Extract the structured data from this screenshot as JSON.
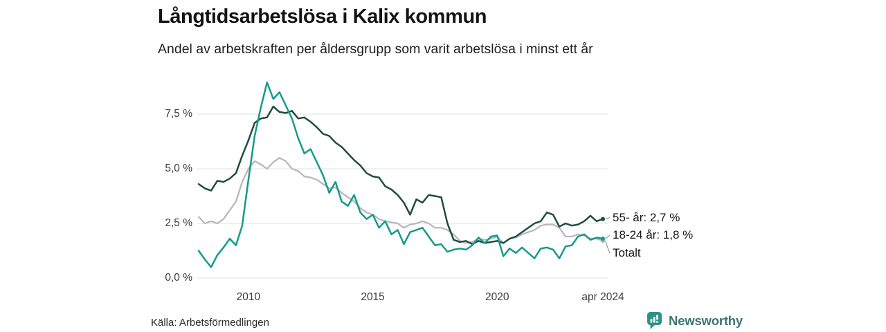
{
  "header": {
    "title": "Långtidsarbetslösa i Kalix kommun",
    "subtitle": "Andel av arbetskraften per åldersgrupp som varit arbetslösa i minst ett år"
  },
  "footer": {
    "source": "Källa: Arbetsförmedlingen",
    "brand": "Newsworthy"
  },
  "colors": {
    "series_55": "#1e4d40",
    "series_18_24": "#149a8b",
    "series_total": "#b8b6bc",
    "gridline": "#e6e6e6",
    "connector": "#999999",
    "brand_icon": "#2f9287",
    "brand_text": "#3b7572"
  },
  "chart_data": {
    "type": "line",
    "title": "Långtidsarbetslösa i Kalix kommun",
    "xlabel": "",
    "ylabel": "Andel av arbetskraften (%)",
    "x_unit": "decimal_year",
    "x_start": 2008.0,
    "x_step": 0.25,
    "xlim": [
      2008.0,
      2024.25
    ],
    "ylim": [
      0,
      9.2
    ],
    "grid": "horizontal",
    "legend_position": "right-annotations",
    "y_ticks": [
      {
        "value": 0.0,
        "label": "0,0 %"
      },
      {
        "value": 2.5,
        "label": "2,5 %"
      },
      {
        "value": 5.0,
        "label": "5,0 %"
      },
      {
        "value": 7.5,
        "label": "7,5 %"
      }
    ],
    "x_ticks": [
      {
        "value": 2010,
        "label": "2010"
      },
      {
        "value": 2015,
        "label": "2015"
      },
      {
        "value": 2020,
        "label": "2020"
      },
      {
        "value": 2024.25,
        "label": "apr 2024"
      }
    ],
    "series": [
      {
        "name": "Totalt",
        "color": "#b8b6bc",
        "width": 2.25,
        "values": [
          2.8,
          2.5,
          2.6,
          2.5,
          2.7,
          3.1,
          3.5,
          4.4,
          5.0,
          5.35,
          5.2,
          5.0,
          5.3,
          5.5,
          5.35,
          5.0,
          4.9,
          4.65,
          4.6,
          4.5,
          4.3,
          4.1,
          4.15,
          3.9,
          3.7,
          3.5,
          3.2,
          3.0,
          2.9,
          2.7,
          2.6,
          2.55,
          2.5,
          2.3,
          2.45,
          2.5,
          2.6,
          2.5,
          2.3,
          2.3,
          2.2,
          2.0,
          1.7,
          1.6,
          1.65,
          1.8,
          1.75,
          1.8,
          1.9,
          1.6,
          1.8,
          1.85,
          2.0,
          2.1,
          2.2,
          2.4,
          2.45,
          2.45,
          2.3,
          1.9,
          1.9,
          2.0,
          1.95,
          1.8,
          1.8,
          1.7
        ]
      },
      {
        "name": "55- år",
        "color": "#1e4d40",
        "width": 2.5,
        "values": [
          4.3,
          4.1,
          4.0,
          4.45,
          4.4,
          4.55,
          4.8,
          5.6,
          6.3,
          7.1,
          7.3,
          7.35,
          7.85,
          7.6,
          7.55,
          7.65,
          7.3,
          7.35,
          7.15,
          6.9,
          6.6,
          6.5,
          6.2,
          6.0,
          5.7,
          5.4,
          5.15,
          4.8,
          4.65,
          4.6,
          4.2,
          4.05,
          3.8,
          3.45,
          2.9,
          3.6,
          3.45,
          3.8,
          3.75,
          3.7,
          2.5,
          1.75,
          1.65,
          1.7,
          1.55,
          1.7,
          1.6,
          1.65,
          1.7,
          1.6,
          1.8,
          1.9,
          2.1,
          2.3,
          2.5,
          2.6,
          3.0,
          2.9,
          2.35,
          2.5,
          2.4,
          2.45,
          2.6,
          2.85,
          2.6,
          2.7
        ]
      },
      {
        "name": "18-24 år",
        "color": "#149a8b",
        "width": 2.5,
        "values": [
          1.25,
          0.85,
          0.5,
          1.05,
          1.4,
          1.8,
          1.5,
          2.4,
          4.5,
          6.5,
          7.8,
          8.95,
          8.2,
          8.5,
          7.9,
          7.3,
          6.4,
          5.7,
          5.9,
          5.3,
          4.7,
          3.9,
          4.4,
          3.5,
          3.3,
          3.8,
          3.0,
          2.7,
          2.9,
          2.3,
          2.6,
          2.0,
          2.2,
          1.55,
          2.1,
          2.2,
          2.3,
          1.9,
          1.5,
          1.55,
          1.2,
          1.3,
          1.35,
          1.3,
          1.5,
          1.85,
          1.6,
          1.9,
          1.95,
          1.0,
          1.35,
          1.15,
          1.4,
          1.15,
          0.9,
          1.35,
          1.4,
          1.3,
          0.9,
          1.45,
          1.5,
          1.9,
          2.0,
          1.75,
          1.85,
          1.8
        ]
      }
    ],
    "annotations": [
      {
        "series": "55- år",
        "label": "55- år: 2,7 %",
        "dy": -2
      },
      {
        "series": "18-24 år",
        "label": "18-24 år: 1,8 %",
        "dy": -5
      },
      {
        "series": "Totalt",
        "label": "Totalt",
        "dy": 18
      }
    ]
  }
}
